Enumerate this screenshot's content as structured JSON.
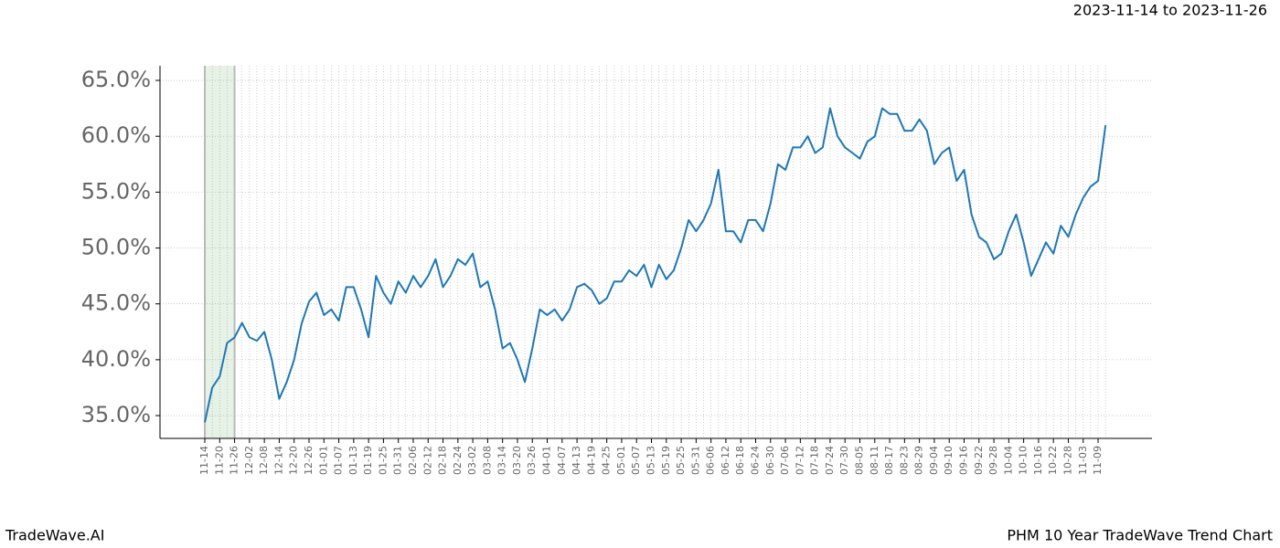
{
  "header": {
    "date_range": "2023-11-14 to 2023-11-26"
  },
  "chart_data": {
    "type": "line",
    "categories": [
      "11-14",
      null,
      "11-20",
      null,
      "11-26",
      null,
      "12-02",
      null,
      "12-08",
      null,
      "12-14",
      null,
      "12-20",
      null,
      "12-26",
      null,
      "01-01",
      null,
      "01-07",
      null,
      "01-13",
      null,
      "01-19",
      null,
      "01-25",
      null,
      "01-31",
      null,
      "02-06",
      null,
      "02-12",
      null,
      "02-18",
      null,
      "02-24",
      null,
      "03-02",
      null,
      "03-08",
      null,
      "03-14",
      null,
      "03-20",
      null,
      "03-26",
      null,
      "04-01",
      null,
      "04-07",
      null,
      "04-13",
      null,
      "04-19",
      null,
      "04-25",
      null,
      "05-01",
      null,
      "05-07",
      null,
      "05-13",
      null,
      "05-19",
      null,
      "05-25",
      null,
      "05-31",
      null,
      "06-06",
      null,
      "06-12",
      null,
      "06-18",
      null,
      "06-24",
      null,
      "06-30",
      null,
      "07-06",
      null,
      "07-12",
      null,
      "07-18",
      null,
      "07-24",
      null,
      "07-30",
      null,
      "08-05",
      null,
      "08-11",
      null,
      "08-17",
      null,
      "08-23",
      null,
      "08-29",
      null,
      "09-04",
      null,
      "09-10",
      null,
      "09-16",
      null,
      "09-22",
      null,
      "09-28",
      null,
      "10-04",
      null,
      "10-10",
      null,
      "10-16",
      null,
      "10-22",
      null,
      "10-28",
      null,
      "11-03",
      null,
      "11-09",
      null
    ],
    "values": [
      34.4,
      37.5,
      38.5,
      41.5,
      42,
      43.3,
      42,
      41.7,
      42.5,
      40,
      36.5,
      38,
      40,
      43.2,
      45.2,
      46,
      44,
      44.5,
      43.5,
      46.5,
      46.5,
      44.5,
      42,
      47.5,
      46,
      45,
      47,
      46,
      47.5,
      46.5,
      47.5,
      49,
      46.5,
      47.5,
      49,
      48.5,
      49.5,
      46.5,
      47,
      44.5,
      41,
      41.5,
      40,
      38,
      41,
      44.5,
      44,
      44.5,
      43.5,
      44.5,
      46.5,
      46.8,
      46.2,
      45,
      45.5,
      47,
      47,
      48,
      47.5,
      48.5,
      46.5,
      48.5,
      47.2,
      48,
      50,
      52.5,
      51.5,
      52.5,
      54,
      57,
      51.5,
      51.5,
      50.5,
      52.5,
      52.5,
      51.5,
      54,
      57.5,
      57,
      59,
      59,
      60,
      58.5,
      59,
      62.5,
      60,
      59,
      58.5,
      58,
      59.5,
      60,
      62.5,
      62,
      62,
      60.5,
      60.5,
      61.5,
      60.5,
      57.5,
      58.5,
      59,
      56,
      57,
      53,
      51,
      50.5,
      49,
      49.5,
      51.5,
      53,
      50.5,
      47.5,
      49,
      50.5,
      49.5,
      52,
      51,
      53,
      54.5,
      55.5,
      56,
      61
    ],
    "color": "#1f77b4",
    "ylim": [
      32.96,
      66.31
    ],
    "yticks": [
      {
        "value": 35,
        "label": "35.0%"
      },
      {
        "value": 40,
        "label": "40.0%"
      },
      {
        "value": 45,
        "label": "45.0%"
      },
      {
        "value": 50,
        "label": "50.0%"
      },
      {
        "value": 55,
        "label": "55.0%"
      },
      {
        "value": 60,
        "label": "60.0%"
      },
      {
        "value": 65,
        "label": "65.0%"
      }
    ],
    "grid": true,
    "highlight_range": [
      "11-14",
      "11-26"
    ],
    "highlight_color": "#e6f2e6"
  },
  "footer": {
    "brand": "TradeWave.AI",
    "title": "PHM 10 Year TradeWave Trend Chart"
  }
}
